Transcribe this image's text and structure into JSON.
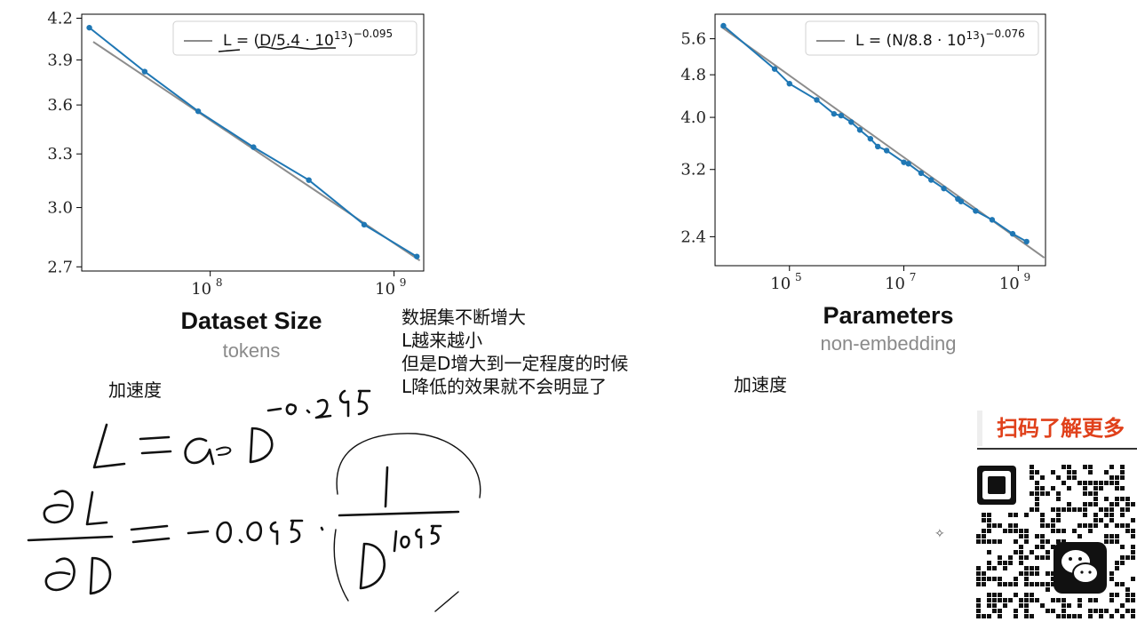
{
  "chart_data": [
    {
      "type": "line",
      "xscale": "log",
      "yscale": "log",
      "xlim": [
        20000000.0,
        1450000000.0
      ],
      "ylim": [
        2.68,
        4.23
      ],
      "xticks": [
        {
          "value": 100000000.0,
          "base": "10",
          "exp": "8"
        },
        {
          "value": 1000000000.0,
          "base": "10",
          "exp": "9"
        }
      ],
      "yticks": [
        {
          "value": 2.7,
          "label": "2.7"
        },
        {
          "value": 3.0,
          "label": "3.0"
        },
        {
          "value": 3.3,
          "label": "3.3"
        },
        {
          "value": 3.6,
          "label": "3.6"
        },
        {
          "value": 3.9,
          "label": "3.9"
        },
        {
          "value": 4.2,
          "label": "4.2"
        }
      ],
      "legend": {
        "position": "top-right",
        "lhs": "L = (D/5.4 · 10",
        "exp13": "13",
        "rhs": ")",
        "exp": "−0.095"
      },
      "fit": {
        "coefficient": 54000000000000.0,
        "exponent": -0.095
      },
      "x": [
        22000000.0,
        44000000.0,
        86000000.0,
        172000000.0,
        344000000.0,
        688000000.0,
        1330000000.0
      ],
      "y": [
        4.13,
        3.82,
        3.56,
        3.34,
        3.15,
        2.91,
        2.75
      ],
      "title": "Dataset Size",
      "subtitle": "tokens"
    },
    {
      "type": "line",
      "xscale": "log",
      "yscale": "log",
      "xlim": [
        5000.0,
        3000000000.0
      ],
      "ylim": [
        2.12,
        6.22
      ],
      "xticks": [
        {
          "value": 100000.0,
          "base": "10",
          "exp": "5"
        },
        {
          "value": 10000000.0,
          "base": "10",
          "exp": "7"
        },
        {
          "value": 1000000000.0,
          "base": "10",
          "exp": "9"
        }
      ],
      "yticks": [
        {
          "value": 2.4,
          "label": "2.4"
        },
        {
          "value": 3.2,
          "label": "3.2"
        },
        {
          "value": 4.0,
          "label": "4.0"
        },
        {
          "value": 4.8,
          "label": "4.8"
        },
        {
          "value": 5.6,
          "label": "5.6"
        }
      ],
      "legend": {
        "position": "top-right",
        "lhs": "L = (N/8.8 · 10",
        "exp13": "13",
        "rhs": ")",
        "exp": "−0.076"
      },
      "fit": {
        "coefficient": 88000000000000.0,
        "exponent": -0.076
      },
      "x": [
        7000.0,
        55000.0,
        100000.0,
        300000.0,
        600000.0,
        800000.0,
        1200000.0,
        1700000.0,
        2600000.0,
        3500000.0,
        5000000.0,
        10000000.0,
        12000000.0,
        20000000.0,
        30000000.0,
        50000000.0,
        88000000.0,
        100000000.0,
        180000000.0,
        350000000.0,
        800000000.0,
        1400000000.0
      ],
      "y": [
        5.92,
        4.92,
        4.62,
        4.31,
        4.06,
        4.03,
        3.92,
        3.79,
        3.65,
        3.53,
        3.47,
        3.3,
        3.28,
        3.15,
        3.06,
        2.95,
        2.82,
        2.79,
        2.68,
        2.58,
        2.43,
        2.35
      ],
      "title": "Parameters",
      "subtitle": "non-embedding"
    }
  ],
  "notes": {
    "center_lines": [
      "数据集不断增大",
      "L越来越小",
      "但是D增大到一定程度的时候",
      "L降低的效果就不会明显了"
    ],
    "left_label": "加速度",
    "right_label": "加速度"
  },
  "qr_banner": "扫码了解更多",
  "icons": {
    "wechat": "wechat-icon",
    "sparkle": "sparkle-icon"
  },
  "colors": {
    "series": "#1f77b4",
    "fit": "#8c8c8c",
    "banner": "#e0401a"
  }
}
